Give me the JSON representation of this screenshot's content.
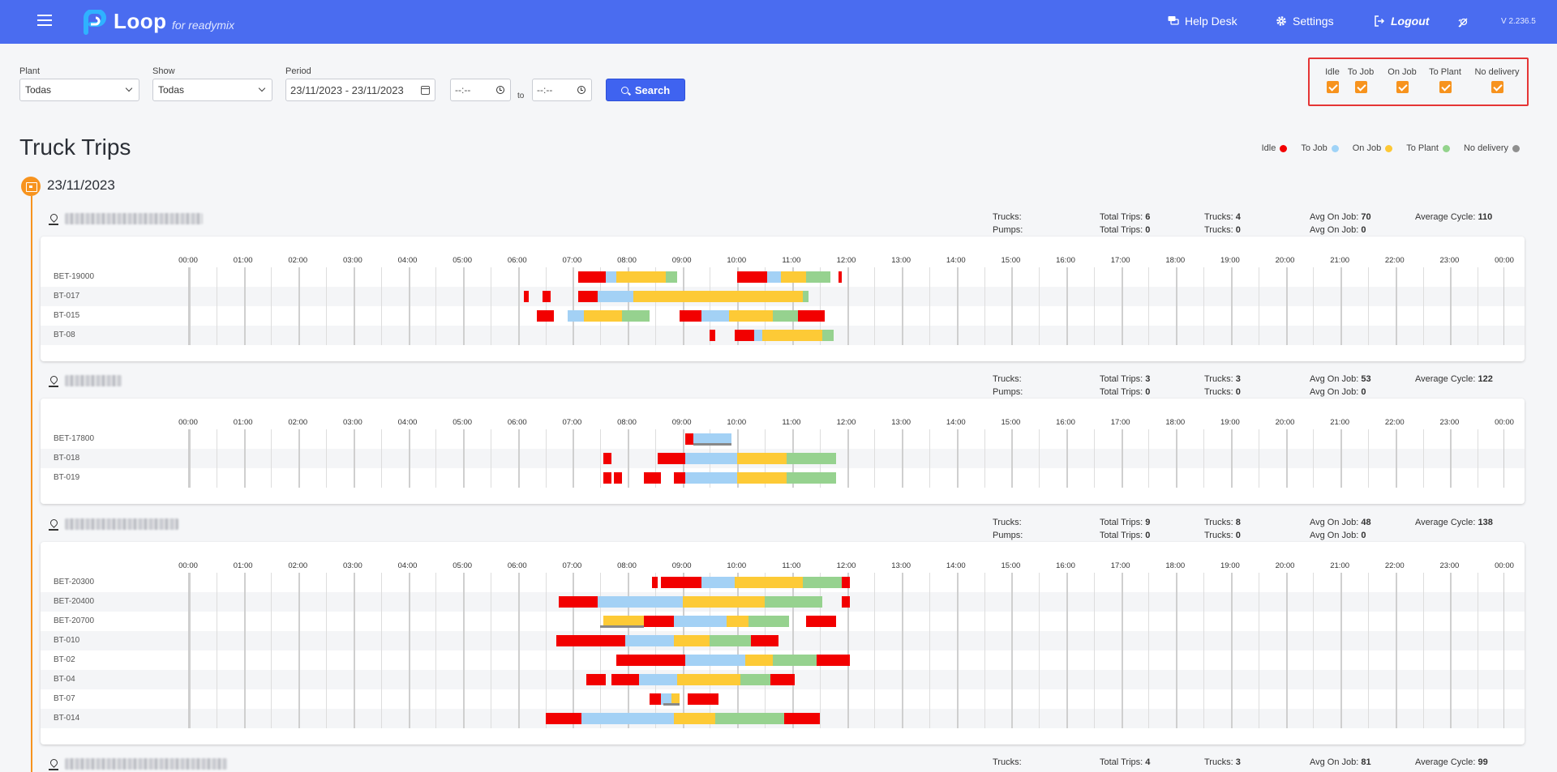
{
  "app": {
    "brand": "Loop",
    "brand_sub": "for readymix",
    "nav": {
      "help_desk": "Help Desk",
      "settings": "Settings",
      "logout": "Logout"
    },
    "version": "V 2.236.5"
  },
  "filters": {
    "plant_label": "Plant",
    "plant_value": "Todas",
    "show_label": "Show",
    "show_value": "Todas",
    "period_label": "Period",
    "period_value": "23/11/2023 - 23/11/2023",
    "time_from": "--:--",
    "to_label": "to",
    "time_to": "--:--",
    "search_label": "Search"
  },
  "status_filters": [
    {
      "label": "Idle",
      "checked": true
    },
    {
      "label": "To Job",
      "checked": true
    },
    {
      "label": "On Job",
      "checked": true
    },
    {
      "label": "To Plant",
      "checked": true
    },
    {
      "label": "No delivery",
      "checked": true
    }
  ],
  "page_title": "Truck Trips",
  "legend": [
    {
      "label": "Idle",
      "color": "#f20000"
    },
    {
      "label": "To Job",
      "color": "#9fd3f7"
    },
    {
      "label": "On Job",
      "color": "#fdc835"
    },
    {
      "label": "To Plant",
      "color": "#93d38c"
    },
    {
      "label": "No delivery",
      "color": "#8f8f8f"
    }
  ],
  "colors": {
    "idle": "#f20000",
    "tojob": "#a3d1f5",
    "onjob": "#fdca36",
    "toplant": "#96d28f",
    "nodelivery": "#8a8a8a",
    "accent": "#f7931e",
    "brand": "#4a6cf0"
  },
  "date": "23/11/2023",
  "stat_labels": {
    "trucks": "Trucks:",
    "pumps": "Pumps:",
    "total_trips": "Total Trips:",
    "avg_on_job": "Avg On Job:",
    "average_cycle": "Average Cycle:"
  },
  "hours": [
    "00:00",
    "01:00",
    "02:00",
    "03:00",
    "04:00",
    "05:00",
    "06:00",
    "07:00",
    "08:00",
    "09:00",
    "10:00",
    "11:00",
    "12:00",
    "13:00",
    "14:00",
    "15:00",
    "16:00",
    "17:00",
    "18:00",
    "19:00",
    "20:00",
    "21:00",
    "22:00",
    "23:00",
    "00:00"
  ],
  "plants": [
    {
      "stats": {
        "trucks_trips": "6",
        "pumps_trips": "0",
        "trucks": "4",
        "pumps": "0",
        "avg_on_job_trucks": "70",
        "avg_on_job_pumps": "0",
        "average_cycle": "110"
      },
      "trucks": [
        {
          "name": "BET-19000",
          "segments": [
            [
              "idle",
              7.1,
              7.6
            ],
            [
              "tojob",
              7.6,
              7.8
            ],
            [
              "onjob",
              7.8,
              8.7
            ],
            [
              "toplant",
              8.7,
              8.9
            ],
            [
              "idle",
              10.0,
              10.55
            ],
            [
              "tojob",
              10.55,
              10.8
            ],
            [
              "onjob",
              10.8,
              11.25
            ],
            [
              "toplant",
              11.25,
              11.7
            ],
            [
              "idle",
              11.85,
              11.9
            ]
          ]
        },
        {
          "name": "BT-017",
          "segments": [
            [
              "idle",
              6.1,
              6.2
            ],
            [
              "idle",
              6.45,
              6.6
            ],
            [
              "idle",
              7.1,
              7.45
            ],
            [
              "tojob",
              7.45,
              8.1
            ],
            [
              "onjob",
              8.1,
              11.2
            ],
            [
              "toplant",
              11.2,
              11.3
            ]
          ]
        },
        {
          "name": "BT-015",
          "segments": [
            [
              "idle",
              6.35,
              6.65
            ],
            [
              "tojob",
              6.9,
              7.2
            ],
            [
              "onjob",
              7.2,
              7.9
            ],
            [
              "toplant",
              7.9,
              8.4
            ],
            [
              "idle",
              8.95,
              9.35
            ],
            [
              "tojob",
              9.35,
              9.85
            ],
            [
              "onjob",
              9.85,
              10.65
            ],
            [
              "toplant",
              10.65,
              11.1
            ],
            [
              "idle",
              11.1,
              11.6
            ]
          ]
        },
        {
          "name": "BT-08",
          "segments": [
            [
              "idle",
              9.5,
              9.6
            ],
            [
              "idle",
              9.95,
              10.3
            ],
            [
              "tojob",
              10.3,
              10.45
            ],
            [
              "onjob",
              10.45,
              11.55
            ],
            [
              "toplant",
              11.55,
              11.75
            ]
          ]
        }
      ]
    },
    {
      "stats": {
        "trucks_trips": "3",
        "pumps_trips": "0",
        "trucks": "3",
        "pumps": "0",
        "avg_on_job_trucks": "53",
        "avg_on_job_pumps": "0",
        "average_cycle": "122"
      },
      "trucks": [
        {
          "name": "BET-17800",
          "segments": [
            [
              "idle",
              9.05,
              9.2
            ],
            [
              "tojob",
              9.2,
              9.9
            ]
          ],
          "lines": [
            [
              9.2,
              9.9
            ]
          ]
        },
        {
          "name": "BT-018",
          "segments": [
            [
              "idle",
              7.55,
              7.7
            ],
            [
              "idle",
              8.55,
              9.05
            ],
            [
              "tojob",
              9.05,
              10.0
            ],
            [
              "onjob",
              10.0,
              10.9
            ],
            [
              "toplant",
              10.9,
              11.8
            ]
          ]
        },
        {
          "name": "BT-019",
          "segments": [
            [
              "idle",
              7.55,
              7.7
            ],
            [
              "idle",
              7.75,
              7.9
            ],
            [
              "idle",
              8.3,
              8.6
            ],
            [
              "idle",
              8.85,
              9.05
            ],
            [
              "tojob",
              9.05,
              10.0
            ],
            [
              "onjob",
              10.0,
              10.9
            ],
            [
              "toplant",
              10.9,
              11.8
            ]
          ]
        }
      ]
    },
    {
      "stats": {
        "trucks_trips": "9",
        "pumps_trips": "0",
        "trucks": "8",
        "pumps": "0",
        "avg_on_job_trucks": "48",
        "avg_on_job_pumps": "0",
        "average_cycle": "138"
      },
      "trucks": [
        {
          "name": "BET-20300",
          "segments": [
            [
              "idle",
              8.45,
              8.55
            ],
            [
              "idle",
              8.6,
              9.35
            ],
            [
              "tojob",
              9.35,
              9.95
            ],
            [
              "onjob",
              9.95,
              11.2
            ],
            [
              "toplant",
              11.2,
              11.9
            ],
            [
              "idle",
              11.9,
              12.05
            ]
          ]
        },
        {
          "name": "BET-20400",
          "segments": [
            [
              "idle",
              6.75,
              7.45
            ],
            [
              "tojob",
              7.45,
              9.0
            ],
            [
              "onjob",
              9.0,
              10.5
            ],
            [
              "toplant",
              10.5,
              11.55
            ],
            [
              "idle",
              11.9,
              12.05
            ]
          ]
        },
        {
          "name": "BET-20700",
          "segments": [
            [
              "onjob",
              7.55,
              8.3
            ],
            [
              "idle",
              8.3,
              8.85
            ],
            [
              "tojob",
              8.85,
              9.8
            ],
            [
              "onjob",
              9.8,
              10.2
            ],
            [
              "toplant",
              10.2,
              10.95
            ],
            [
              "idle",
              11.25,
              11.8
            ]
          ],
          "lines": [
            [
              7.5,
              8.3
            ]
          ]
        },
        {
          "name": "BT-010",
          "segments": [
            [
              "idle",
              6.7,
              7.95
            ],
            [
              "tojob",
              7.95,
              8.85
            ],
            [
              "onjob",
              8.85,
              9.5
            ],
            [
              "toplant",
              9.5,
              10.25
            ],
            [
              "idle",
              10.25,
              10.75
            ]
          ]
        },
        {
          "name": "BT-02",
          "segments": [
            [
              "idle",
              7.8,
              9.05
            ],
            [
              "tojob",
              9.05,
              10.15
            ],
            [
              "onjob",
              10.15,
              10.65
            ],
            [
              "toplant",
              10.65,
              11.45
            ],
            [
              "idle",
              11.45,
              12.05
            ]
          ]
        },
        {
          "name": "BT-04",
          "segments": [
            [
              "idle",
              7.25,
              7.6
            ],
            [
              "idle",
              7.7,
              8.2
            ],
            [
              "tojob",
              8.2,
              8.9
            ],
            [
              "onjob",
              8.9,
              10.05
            ],
            [
              "toplant",
              10.05,
              10.6
            ],
            [
              "idle",
              10.6,
              11.05
            ]
          ]
        },
        {
          "name": "BT-07",
          "segments": [
            [
              "idle",
              8.4,
              8.6
            ],
            [
              "tojob",
              8.6,
              8.8
            ],
            [
              "onjob",
              8.8,
              8.95
            ],
            [
              "idle",
              9.1,
              9.65
            ]
          ],
          "lines": [
            [
              8.65,
              8.95
            ]
          ]
        },
        {
          "name": "BT-014",
          "segments": [
            [
              "idle",
              6.5,
              7.15
            ],
            [
              "tojob",
              7.15,
              8.85
            ],
            [
              "onjob",
              8.85,
              9.6
            ],
            [
              "toplant",
              9.6,
              10.85
            ],
            [
              "idle",
              10.85,
              11.5
            ]
          ]
        }
      ]
    },
    {
      "stats": {
        "trucks_trips": "4",
        "trucks": "3",
        "avg_on_job_trucks": "81",
        "average_cycle": "99"
      },
      "trucks": []
    }
  ]
}
